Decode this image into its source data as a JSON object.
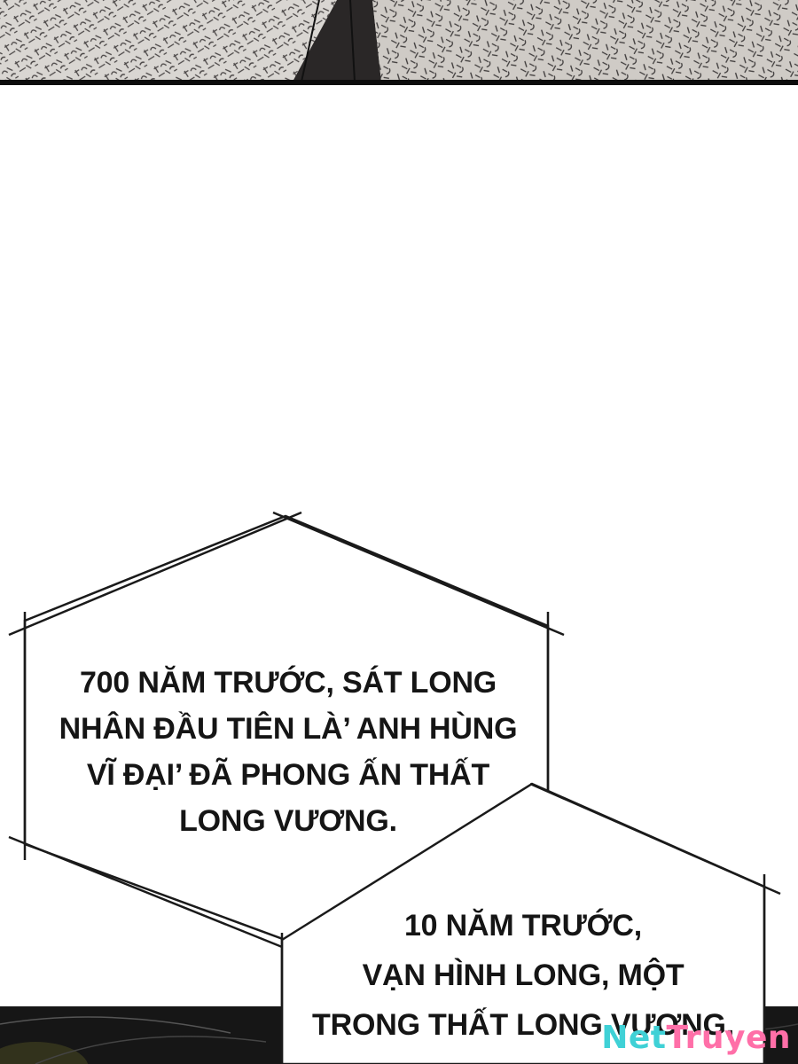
{
  "caption_top": {
    "lines": [
      "700 NĂM TRƯỚC, SÁT LONG",
      "NHÂN ĐẦU TIÊN LÀ’ ANH HÙNG",
      "VĨ ĐẠI’ ĐÃ PHONG ẤN THẤT",
      "LONG VƯƠNG."
    ]
  },
  "caption_bottom": {
    "lines": [
      "10 NĂM TRƯỚC,",
      "VẠN HÌNH LONG, MỘT",
      "TRONG THẤT LONG VƯƠNG,"
    ]
  },
  "watermark": {
    "part_a": "Net",
    "part_b": "Truyen"
  },
  "colors": {
    "ink": "#151515",
    "background": "#ffffff",
    "watermark_a": "#3fd1d6",
    "watermark_b": "#ff6fa8"
  }
}
